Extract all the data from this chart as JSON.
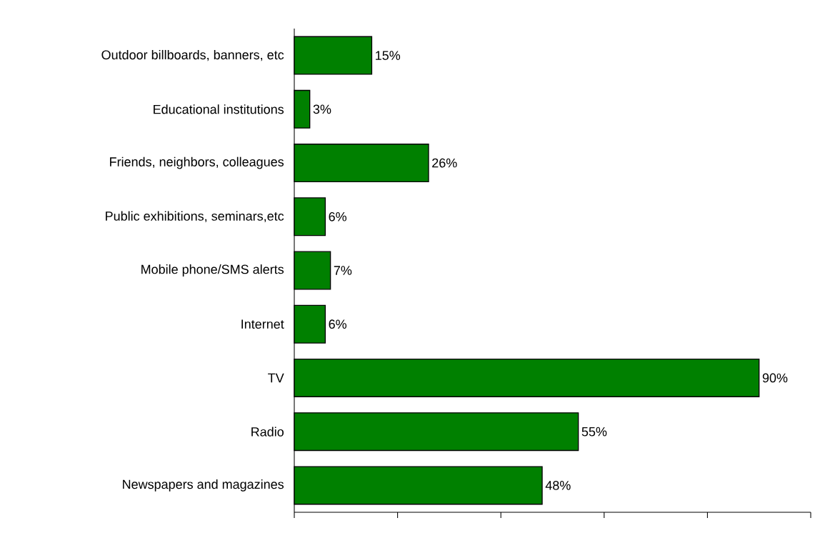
{
  "chart_data": {
    "type": "bar",
    "orientation": "horizontal",
    "categories": [
      "Outdoor billboards, banners, etc",
      "Educational institutions",
      "Friends, neighbors, colleagues",
      "Public exhibitions, seminars,etc",
      "Mobile phone/SMS alerts",
      "Internet",
      "TV",
      "Radio",
      "Newspapers and magazines"
    ],
    "values": [
      15,
      3,
      26,
      6,
      7,
      6,
      90,
      55,
      48
    ],
    "value_labels": [
      "15%",
      "3%",
      "26%",
      "6%",
      "7%",
      "6%",
      "90%",
      "55%",
      "48%"
    ],
    "color": "#008000",
    "xlim": [
      0,
      100
    ],
    "xticks": [
      {
        "value": 0,
        "label": null
      },
      {
        "value": 20,
        "label": null
      },
      {
        "value": 40,
        "label": null
      },
      {
        "value": 60,
        "label": null
      },
      {
        "value": 80,
        "label": null
      },
      {
        "value": 100,
        "label": null
      }
    ],
    "tick_labels": "y"
  }
}
